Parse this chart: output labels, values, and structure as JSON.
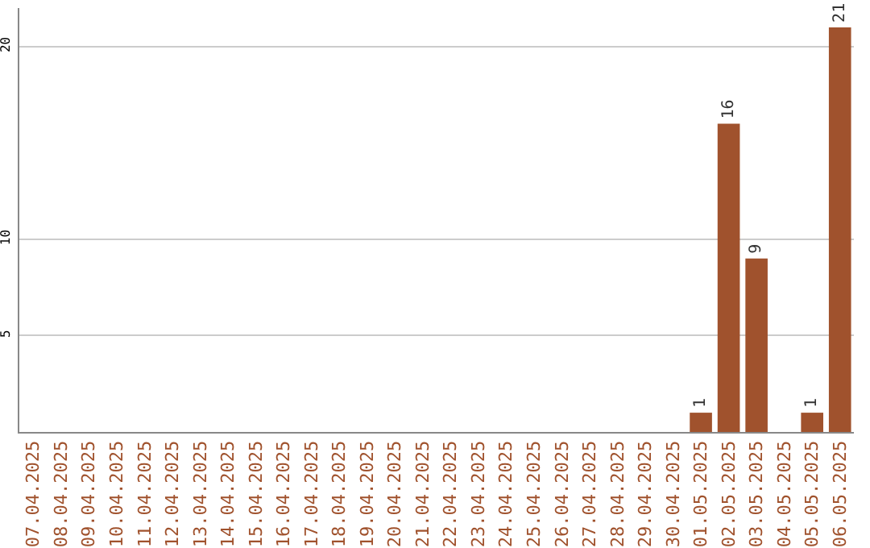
{
  "chart_data": {
    "type": "bar",
    "categories": [
      "07.04.2025",
      "08.04.2025",
      "09.04.2025",
      "10.04.2025",
      "11.04.2025",
      "12.04.2025",
      "13.04.2025",
      "14.04.2025",
      "15.04.2025",
      "16.04.2025",
      "17.04.2025",
      "18.04.2025",
      "19.04.2025",
      "20.04.2025",
      "21.04.2025",
      "22.04.2025",
      "23.04.2025",
      "24.04.2025",
      "25.04.2025",
      "26.04.2025",
      "27.04.2025",
      "28.04.2025",
      "29.04.2025",
      "30.04.2025",
      "01.05.2025",
      "02.05.2025",
      "03.05.2025",
      "04.05.2025",
      "05.05.2025",
      "06.05.2025"
    ],
    "values": [
      0,
      0,
      0,
      0,
      0,
      0,
      0,
      0,
      0,
      0,
      0,
      0,
      0,
      0,
      0,
      0,
      0,
      0,
      0,
      0,
      0,
      0,
      0,
      0,
      1,
      16,
      9,
      0,
      1,
      21
    ],
    "value_labels": [
      null,
      null,
      null,
      null,
      null,
      null,
      null,
      null,
      null,
      null,
      null,
      null,
      null,
      null,
      null,
      null,
      null,
      null,
      null,
      null,
      null,
      null,
      null,
      null,
      "1",
      "16",
      "9",
      null,
      "1",
      "21"
    ],
    "color": "#a0522d",
    "ylim": [
      0,
      22
    ],
    "yticks": [
      5,
      10,
      20
    ],
    "grid": "y",
    "legend": false
  }
}
